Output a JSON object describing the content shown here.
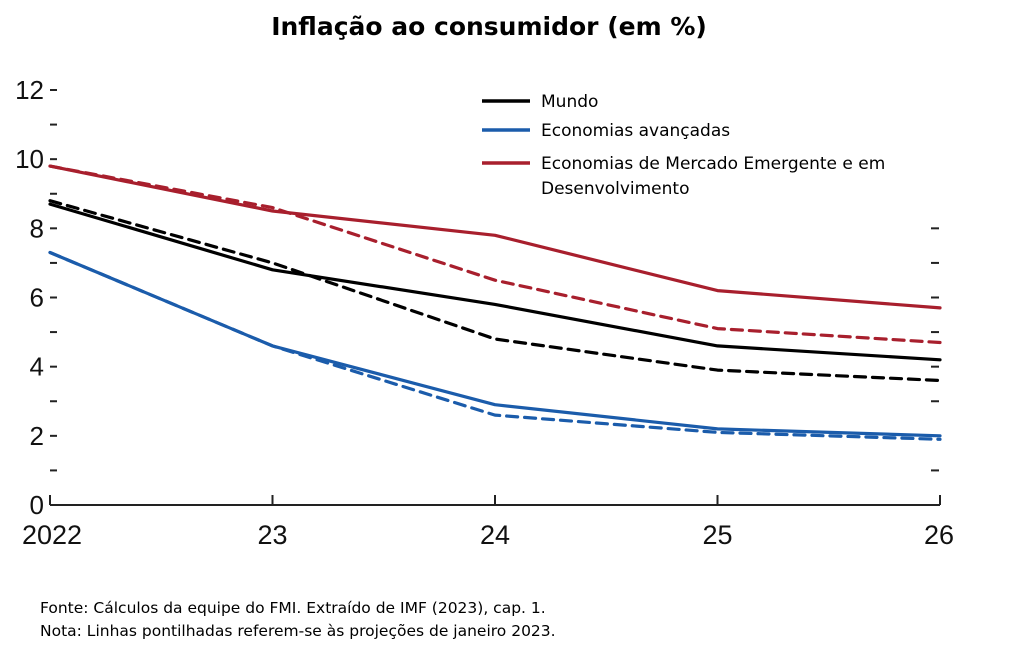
{
  "chart_data": {
    "type": "line",
    "title": "Inflação ao consumidor (em %)",
    "x": [
      "2022",
      "23",
      "24",
      "25",
      "26"
    ],
    "ylim": [
      0,
      12
    ],
    "yticks": [
      0,
      2,
      4,
      6,
      8,
      10,
      12
    ],
    "ytick_labels": [
      "0",
      "2",
      "4",
      "6",
      "8",
      "10",
      "12"
    ],
    "legend_position": "top-right",
    "grid": false,
    "series": [
      {
        "name": "Mundo",
        "color": "#000000",
        "style": "solid",
        "values": [
          8.7,
          6.8,
          5.8,
          4.6,
          4.2
        ]
      },
      {
        "name": "Economias avançadas",
        "color": "#1b5cab",
        "style": "solid",
        "values": [
          7.3,
          4.6,
          2.9,
          2.2,
          2.0
        ]
      },
      {
        "name": "Economias de Mercado Emergente e em Desenvolvimento",
        "legend_lines": [
          "Economias de Mercado Emergente e em",
          "Desenvolvimento"
        ],
        "color": "#a81f2d",
        "style": "solid",
        "values": [
          9.8,
          8.5,
          7.8,
          6.2,
          5.7
        ]
      },
      {
        "color": "#000000",
        "style": "dashed",
        "values": [
          8.8,
          7.0,
          4.8,
          3.9,
          3.6
        ]
      },
      {
        "color": "#1b5cab",
        "style": "dashed",
        "values": [
          7.3,
          4.6,
          2.6,
          2.1,
          1.9
        ]
      },
      {
        "color": "#a81f2d",
        "style": "dashed",
        "values": [
          9.8,
          8.6,
          6.5,
          5.1,
          4.7
        ]
      }
    ]
  },
  "notes": {
    "source": "Fonte: Cálculos da equipe do FMI. Extraído de IMF (2023), cap. 1.",
    "note": "Nota: Linhas pontilhadas referem-se às projeções de janeiro 2023."
  }
}
